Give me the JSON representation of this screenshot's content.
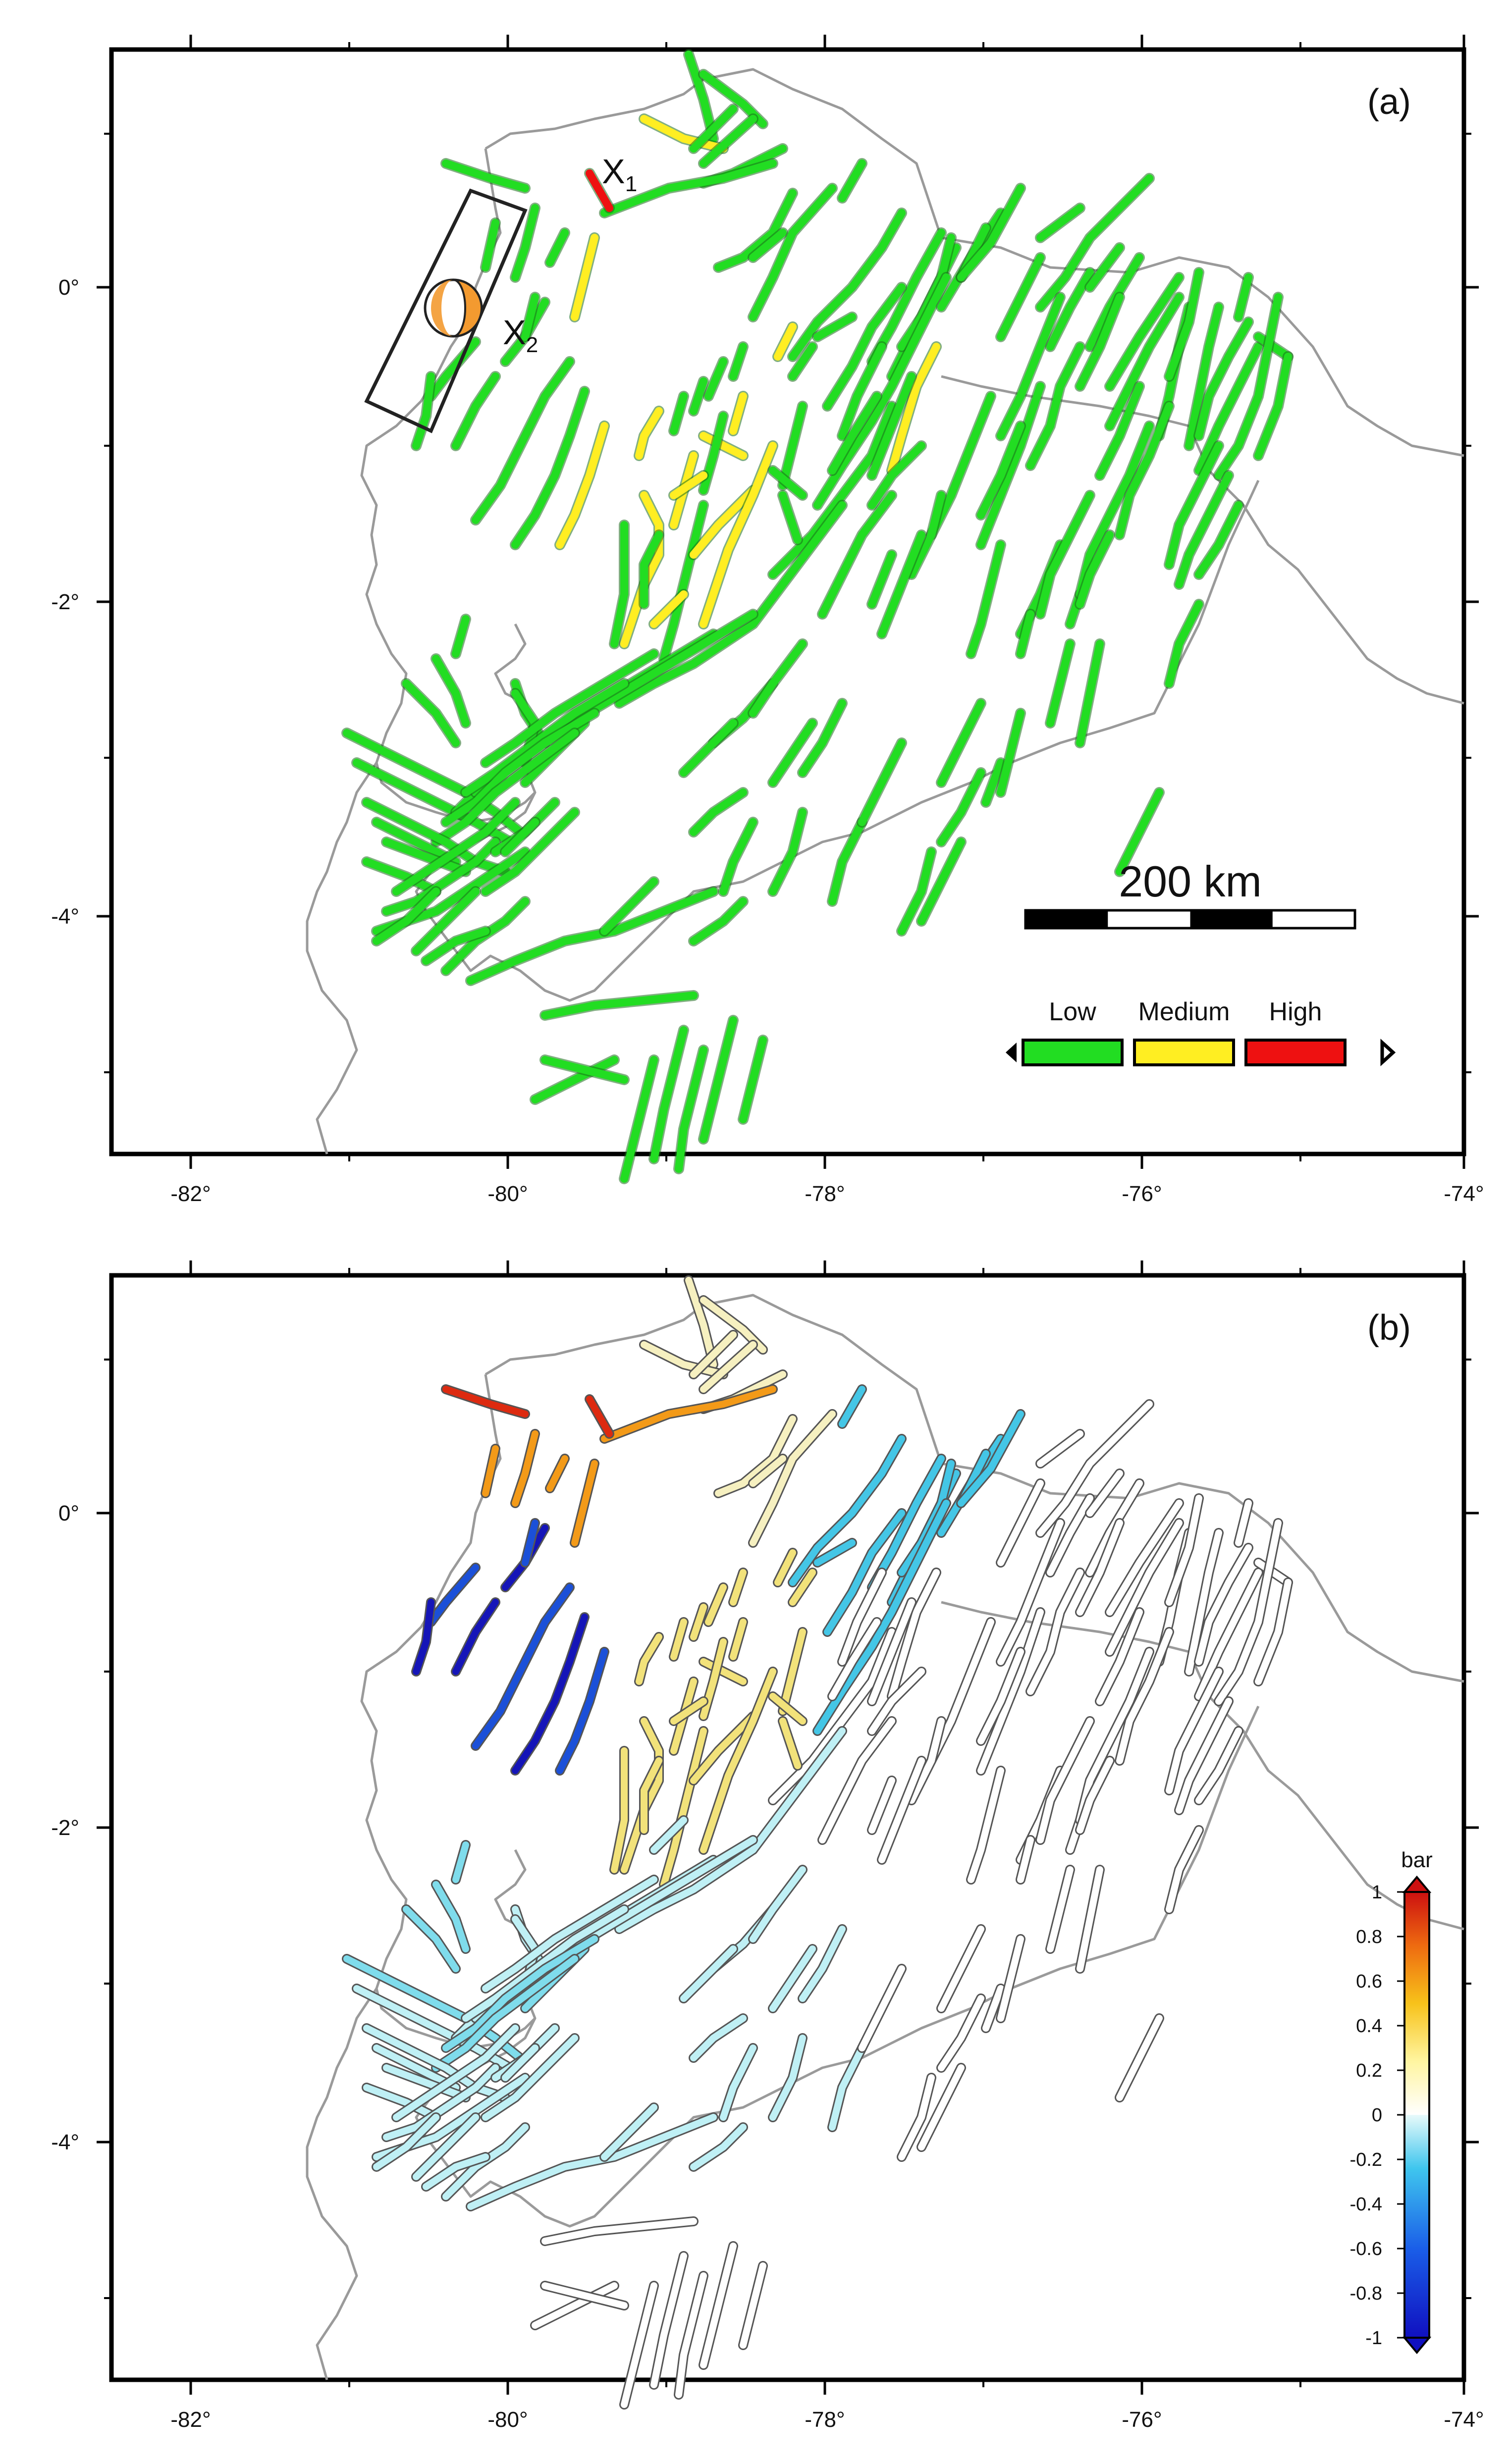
{
  "panels": [
    {
      "label": "(a)"
    },
    {
      "label": "(b)"
    }
  ],
  "x_ticks": [
    "-82°",
    "-80°",
    "-78°",
    "-76°",
    "-74°"
  ],
  "y_ticks": [
    "0°",
    "-2°",
    "-4°"
  ],
  "annotations": {
    "x1": {
      "main": "X",
      "sub": "1"
    },
    "x2": {
      "main": "X",
      "sub": "2"
    }
  },
  "scale_bar": {
    "label": "200 km"
  },
  "category_legend": {
    "items": [
      {
        "label": "Low",
        "color": "#22dd22"
      },
      {
        "label": "Medium",
        "color": "#ffee22"
      },
      {
        "label": "High",
        "color": "#ee1111"
      }
    ]
  },
  "colorbar": {
    "unit": "bar",
    "ticks": [
      "1",
      "0.8",
      "0.6",
      "0.4",
      "0.2",
      "0",
      "-0.2",
      "-0.4",
      "-0.6",
      "-0.8",
      "-1"
    ]
  },
  "colors": {
    "coast": "#9a9a9a",
    "frame": "#000000",
    "low": "#22dd22",
    "medium": "#ffee22",
    "high": "#ee1111"
  }
}
